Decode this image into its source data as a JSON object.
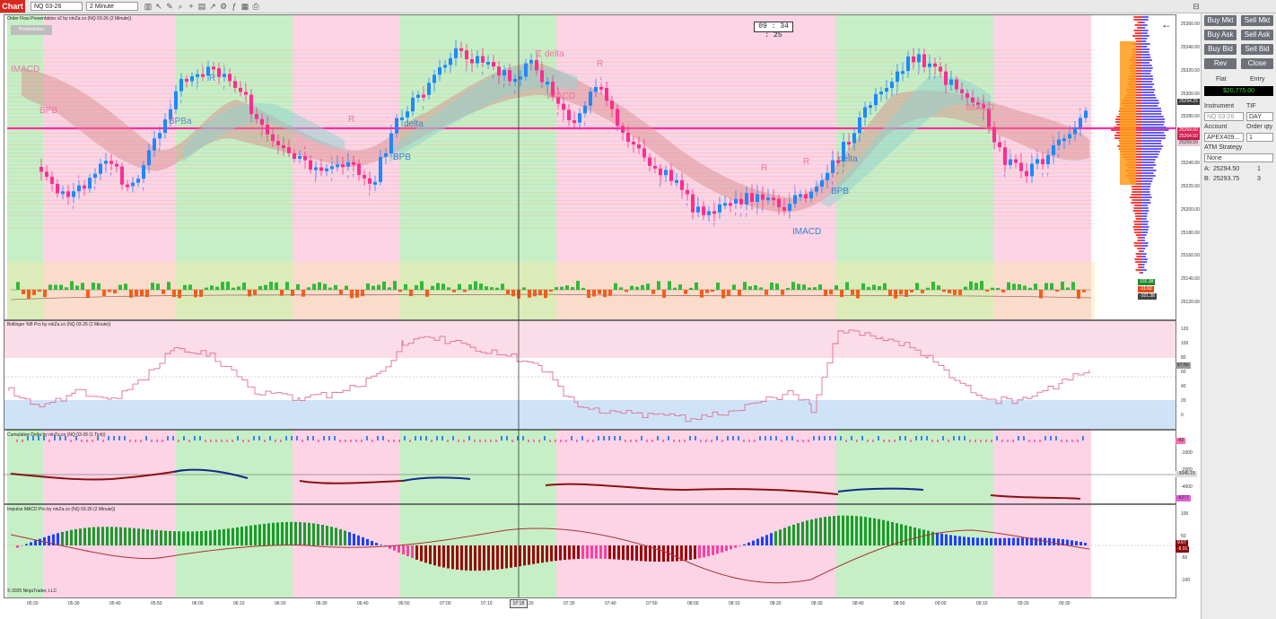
{
  "toolbar": {
    "tab": "Chart",
    "instrument": "NQ 03-26",
    "interval": "2 Minute",
    "icons": [
      "bar-type-icon",
      "cursor-icon",
      "pencil-icon",
      "zoom-icon",
      "crosshair-icon",
      "properties-icon",
      "trend-icon",
      "strategies-icon",
      "indicators-icon",
      "templates-icon"
    ]
  },
  "panels": {
    "price_title": "Order Flow Presentation v2 by ninZa.co (NQ 03-26 (2 Minute))",
    "presentation_btn": "Presentation",
    "bollinger_title": "Bollinger %B Pro by ninZa.co (NQ 03-26 (2 Minute))",
    "cumdelta_title": "Cumulative Delta by ninZa.co (NQ 03-26 (1 Tick))",
    "macd_title": "Impulse MACD Pro by ninZa.co (NQ 03-26 (2 Minute))",
    "copyright": "© 2025 NinjaTrader, LLC"
  },
  "clock": "09 : 34 : 25",
  "annotations": {
    "imacd": "IMACD",
    "bpb": "BPB",
    "bpba": "BPBa",
    "r": "R",
    "sigma_delta": "Σ delta",
    "delta": "delta"
  },
  "price_axis": [
    "25360.00",
    "25340.00",
    "25320.00",
    "25300.00",
    "25280.00",
    "25260.00",
    "25240.00",
    "25220.00",
    "25200.00",
    "25180.00",
    "25160.00",
    "25140.00",
    "25120.00"
  ],
  "price_tags": {
    "last": "25294.25",
    "a": "25269.00",
    "b": "25264.50",
    "c": "25259.50"
  },
  "vol_tags": [
    "102.38",
    "-11.62",
    "-101.38"
  ],
  "bpct_axis": [
    "120",
    "100",
    "80",
    "60",
    "40",
    "20",
    "0"
  ],
  "bpct_tag": "67.50",
  "cd_axis": [
    "-1000",
    "-2000",
    "-4000"
  ],
  "cd_tags": [
    "-42",
    "-3045.15",
    "-5277"
  ],
  "macd_axis": [
    "100",
    "50",
    "-50",
    "-100"
  ],
  "macd_tags": [
    "9.67",
    "-8.91"
  ],
  "time_axis": [
    "05:20",
    "05:30",
    "05:40",
    "05:50",
    "06:00",
    "06:10",
    "06:20",
    "06:30",
    "06:40",
    "06:50",
    "07:00",
    "07:10",
    "07:20",
    "07:30",
    "07:40",
    "07:50",
    "08:00",
    "08:10",
    "08:20",
    "08:30",
    "08:40",
    "08:50",
    "09:00",
    "09:10",
    "09:20",
    "09:30"
  ],
  "crosshair_time": "07:18",
  "trade": {
    "buy_mkt": "Buy Mkt",
    "sell_mkt": "Sell Mkt",
    "buy_ask": "Buy Ask",
    "sell_ask": "Sell Ask",
    "buy_bid": "Buy Bid",
    "sell_bid": "Sell Bid",
    "rev": "Rev",
    "close": "Close",
    "flat": "Flat",
    "entry": "Entry",
    "pnl": "$20,775.00",
    "instrument_label": "Instrument",
    "tif_label": "TIF",
    "instrument_value": "NQ 03-26",
    "tif_value": "DAY",
    "account_label": "Account",
    "qty_label": "Order qty",
    "account_value": "APEX409...",
    "qty_value": "1",
    "atm_label": "ATM Strategy",
    "atm_value": "None",
    "ask_label": "A:",
    "ask_price": "25294.50",
    "ask_size": "1",
    "bid_label": "B:",
    "bid_price": "25293.75",
    "bid_size": "3"
  },
  "colors": {
    "green_zone": "#c6efc6",
    "pink_zone": "#fcd4e6",
    "bull": "#1e88ff",
    "bear": "#ff2d8f",
    "poc": "#ff2da0"
  }
}
